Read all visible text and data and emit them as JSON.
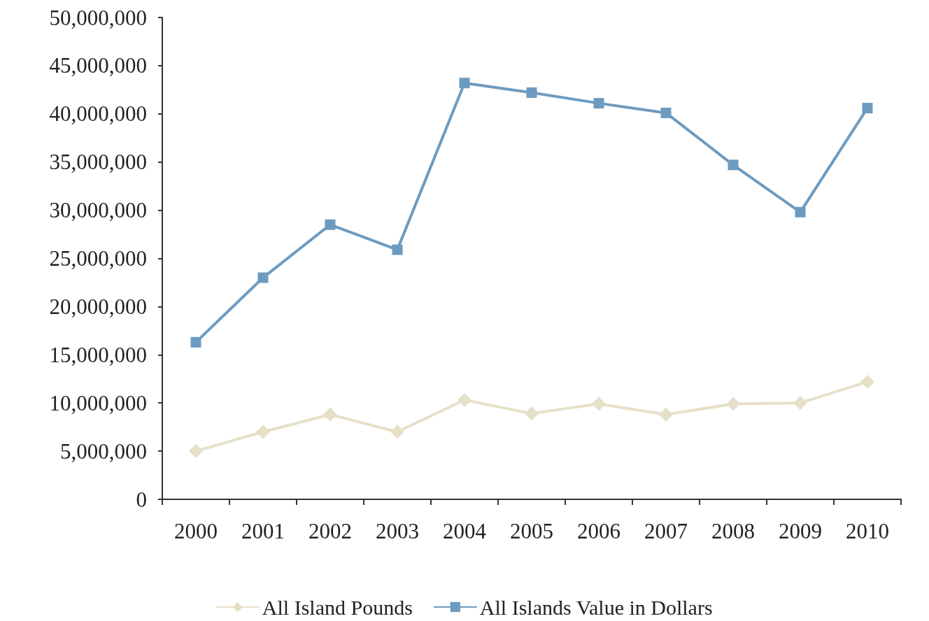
{
  "chart_data": {
    "type": "line",
    "categories": [
      "2000",
      "2001",
      "2002",
      "2003",
      "2004",
      "2005",
      "2006",
      "2007",
      "2008",
      "2009",
      "2010"
    ],
    "series": [
      {
        "name": "All Island Pounds",
        "color": "#e6e0c8",
        "marker": "diamond",
        "values": [
          5000000,
          7000000,
          8800000,
          7000000,
          10300000,
          8900000,
          9900000,
          8800000,
          9900000,
          10000000,
          12200000
        ]
      },
      {
        "name": "All Islands Value in Dollars",
        "color": "#6d9bc0",
        "marker": "square",
        "values": [
          16300000,
          23000000,
          28500000,
          25900000,
          43200000,
          42200000,
          41100000,
          40100000,
          34700000,
          29800000,
          40600000
        ]
      }
    ],
    "ylim": [
      0,
      50000000
    ],
    "yticks": [
      0,
      {
        "value": 5000000,
        "label": "5,000,000"
      },
      {
        "value": 10000000,
        "label": "10,000,000"
      },
      {
        "value": 15000000,
        "label": "15,000,000"
      },
      {
        "value": 20000000,
        "label": "20,000,000"
      },
      {
        "value": 25000000,
        "label": "25,000,000"
      },
      {
        "value": 30000000,
        "label": "30,000,000"
      },
      {
        "value": 35000000,
        "label": "35,000,000"
      },
      {
        "value": 40000000,
        "label": "40,000,000"
      },
      {
        "value": 45000000,
        "label": "45,000,000"
      },
      {
        "value": 50000000,
        "label": "50,000,000"
      }
    ],
    "grid": false,
    "legend": "bottom",
    "line_style": "solid"
  }
}
